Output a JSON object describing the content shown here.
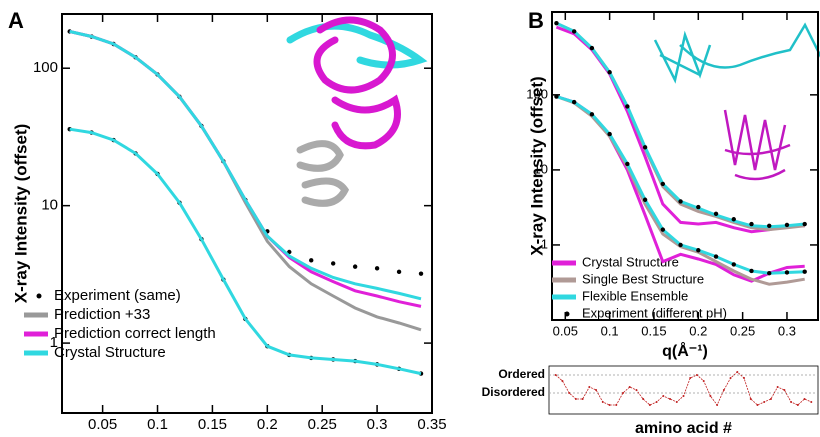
{
  "chart_data": [
    {
      "type": "line",
      "panel": "A",
      "ylabel": "X-ray Intensity (offset)",
      "log_y": true,
      "legend": "lower left",
      "xlim": [
        0.013,
        0.35
      ],
      "xticks": [
        0.05,
        0.1,
        0.15,
        0.2,
        0.25,
        0.3,
        0.35
      ],
      "ylim": [
        0.31,
        248
      ],
      "yticks": [
        1,
        10,
        100
      ],
      "x": [
        0.02,
        0.04,
        0.06,
        0.08,
        0.1,
        0.12,
        0.14,
        0.16,
        0.18,
        0.2,
        0.22,
        0.24,
        0.26,
        0.28,
        0.3,
        0.32,
        0.34
      ],
      "series": [
        {
          "name": "Experiment (same)",
          "color": "#000000",
          "mode": "markers",
          "values": [
            185,
            170,
            150,
            120,
            90,
            62,
            38,
            21,
            11,
            6.5,
            4.6,
            4.0,
            3.8,
            3.6,
            3.5,
            3.3,
            3.2
          ]
        },
        {
          "name": "Prediction +33",
          "color": "#999999",
          "mode": "lines",
          "values": [
            185,
            170,
            150,
            120,
            90,
            62,
            38,
            21,
            10.5,
            5.5,
            3.6,
            2.7,
            2.2,
            1.8,
            1.55,
            1.4,
            1.25
          ]
        },
        {
          "name": "Prediction correct length",
          "color": "#e020d8",
          "mode": "lines",
          "values": [
            185,
            170,
            150,
            120,
            90,
            62,
            38,
            21,
            11,
            6,
            4.2,
            3.3,
            2.8,
            2.4,
            2.2,
            2.0,
            1.85
          ]
        },
        {
          "name": "Crystal Structure",
          "color": "#30d8e0",
          "mode": "lines",
          "values": [
            185,
            170,
            150,
            120,
            90,
            62,
            38,
            21,
            11,
            6,
            4.3,
            3.5,
            3.0,
            2.7,
            2.5,
            2.3,
            2.1
          ]
        },
        {
          "color": "#000000",
          "mode": "markers",
          "values": [
            36,
            34,
            30,
            24,
            17,
            10.5,
            5.7,
            2.9,
            1.5,
            0.95,
            0.82,
            0.78,
            0.76,
            0.74,
            0.7,
            0.65,
            0.6
          ]
        },
        {
          "color": "#30d8e0",
          "mode": "lines",
          "values": [
            36,
            34,
            30,
            24,
            17,
            10.5,
            5.7,
            2.9,
            1.5,
            0.95,
            0.82,
            0.78,
            0.76,
            0.74,
            0.7,
            0.65,
            0.6
          ]
        }
      ]
    },
    {
      "type": "line",
      "panel": "B",
      "ylabel": "X-ray Intensity (offset)",
      "xlabel": "q(Å⁻¹)",
      "log_y": true,
      "legend": "lower left",
      "xlim": [
        0.035,
        0.335
      ],
      "xticks": [
        0.05,
        0.1,
        0.15,
        0.2,
        0.25,
        0.3
      ],
      "ylim": [
        0.1,
        1270
      ],
      "yticks": [
        1,
        10,
        100
      ],
      "x": [
        0.04,
        0.06,
        0.08,
        0.1,
        0.12,
        0.14,
        0.16,
        0.18,
        0.2,
        0.22,
        0.24,
        0.26,
        0.28,
        0.3,
        0.32
      ],
      "series": [
        {
          "name": "Crystal Structure",
          "color": "#e020d8",
          "mode": "lines",
          "values": [
            800,
            650,
            400,
            190,
            60,
            15,
            3.5,
            2.0,
            1.9,
            2.0,
            1.7,
            1.5,
            1.6,
            1.8,
            1.8
          ]
        },
        {
          "name": "Single Best Structure",
          "color": "#b09a96",
          "mode": "lines",
          "values": [
            900,
            700,
            420,
            200,
            70,
            19,
            6,
            3.5,
            2.8,
            2.4,
            2.0,
            1.7,
            1.6,
            1.7,
            1.8
          ]
        },
        {
          "name": "Flexible Ensemble",
          "color": "#30d8e0",
          "mode": "lines",
          "values": [
            900,
            700,
            420,
            200,
            70,
            20,
            6.5,
            3.8,
            3.1,
            2.5,
            2.1,
            1.8,
            1.75,
            1.8,
            1.9
          ]
        },
        {
          "name": "Experiment (different pH)",
          "color": "#000000",
          "mode": "markers",
          "values": [
            900,
            700,
            420,
            200,
            70,
            20,
            6.5,
            3.8,
            3.2,
            2.6,
            2.2,
            1.9,
            1.8,
            1.85,
            1.9
          ]
        },
        {
          "color": "#e020d8",
          "mode": "lines",
          "values": [
            95,
            80,
            55,
            28,
            10,
            2.5,
            0.6,
            0.75,
            0.65,
            0.55,
            0.4,
            0.33,
            0.42,
            0.5,
            0.52
          ]
        },
        {
          "color": "#b09a96",
          "mode": "lines",
          "values": [
            95,
            78,
            52,
            28,
            11,
            3.5,
            1.4,
            0.95,
            0.8,
            0.6,
            0.45,
            0.35,
            0.3,
            0.32,
            0.35
          ]
        },
        {
          "color": "#30d8e0",
          "mode": "lines",
          "values": [
            95,
            80,
            55,
            30,
            12,
            4,
            1.6,
            1.0,
            0.85,
            0.7,
            0.55,
            0.45,
            0.42,
            0.43,
            0.44
          ]
        },
        {
          "color": "#000000",
          "mode": "markers",
          "values": [
            95,
            80,
            55,
            30,
            12,
            4,
            1.6,
            1.0,
            0.85,
            0.7,
            0.55,
            0.45,
            0.42,
            0.43,
            0.44
          ]
        }
      ]
    },
    {
      "type": "line",
      "xlabel": "amino acid #",
      "xlim": [
        0,
        40
      ],
      "ylim": [
        -0.3,
        1.3
      ],
      "yticks": [
        {
          "value": 1,
          "label": "Ordered"
        },
        {
          "value": 0.4,
          "label": "Disordered"
        }
      ],
      "x": [
        1,
        2,
        3,
        4,
        5,
        6,
        7,
        8,
        9,
        10,
        11,
        12,
        13,
        14,
        15,
        16,
        17,
        18,
        19,
        20,
        21,
        22,
        23,
        24,
        25,
        26,
        27,
        28,
        29,
        30,
        31,
        32,
        33,
        34,
        35,
        36,
        37,
        38,
        39
      ],
      "series": [
        {
          "color": "#c02020",
          "mode": "lines+markers",
          "values": [
            1.0,
            0.8,
            0.4,
            0.2,
            0.2,
            0.6,
            0.5,
            0.1,
            0.0,
            0.0,
            0.4,
            0.6,
            0.5,
            0.2,
            0.0,
            0.1,
            0.3,
            0.2,
            0.1,
            0.3,
            0.9,
            1.0,
            0.8,
            0.3,
            0.0,
            0.5,
            0.9,
            1.1,
            0.9,
            0.2,
            0.0,
            0.1,
            0.2,
            0.6,
            0.5,
            0.1,
            0.0,
            0.2,
            0.1
          ]
        }
      ]
    }
  ]
}
